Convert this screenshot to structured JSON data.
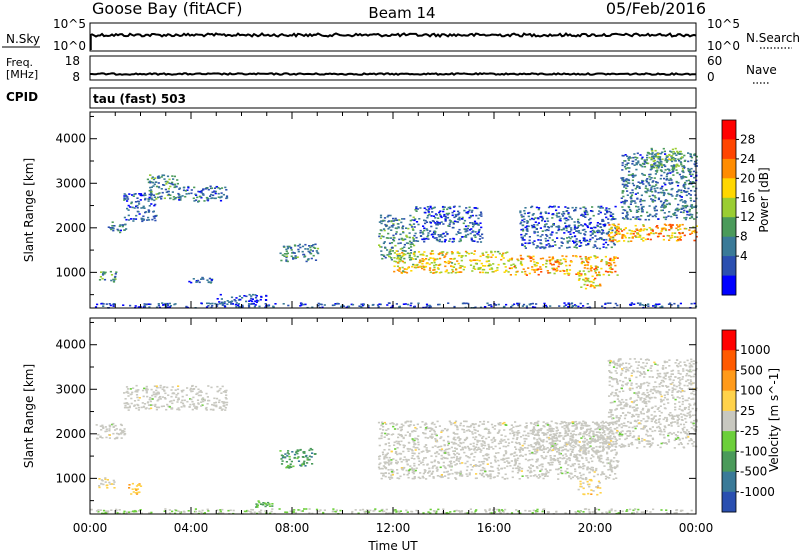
{
  "header": {
    "station": "Goose Bay (fitACF)",
    "beam": "Beam 14",
    "date": "05/Feb/2016"
  },
  "strip_nsky": {
    "left_label": "N.Sky",
    "left_ticks": [
      "10^5",
      "10^0"
    ],
    "right_label": "N.Search",
    "right_ticks": [
      "10^5",
      "10^0"
    ]
  },
  "strip_freq": {
    "left_label_1": "Freq.",
    "left_label_2": "[MHz]",
    "left_ticks": [
      "18",
      "8"
    ],
    "right_label": "Nave",
    "right_ticks": [
      "60",
      "0"
    ]
  },
  "cpid": {
    "label": "CPID",
    "value": "tau (fast) 503"
  },
  "chart_data": [
    {
      "type": "heatmap",
      "name": "power",
      "ylabel": "Slant Range [km]",
      "ylim": [
        200,
        4600
      ],
      "yticks": [
        "1000",
        "2000",
        "3000",
        "4000"
      ],
      "xlim": [
        "00:00",
        "24:00"
      ],
      "colorbar": {
        "label": "Power [dB]",
        "ticks": [
          "28",
          "24",
          "20",
          "16",
          "12",
          "8",
          "4"
        ],
        "colors": [
          "#0000ff",
          "#2b4fb0",
          "#3a7a98",
          "#4a9a5a",
          "#9acd32",
          "#ffd700",
          "#ff8c00",
          "#ff4500",
          "#ff0000"
        ],
        "range": [
          0,
          30
        ]
      },
      "regions": [
        {
          "t": [
            0.7,
            1.4
          ],
          "r": [
            1900,
            2150
          ],
          "v": 8
        },
        {
          "t": [
            1.3,
            2.6
          ],
          "r": [
            2150,
            2800
          ],
          "v": 6
        },
        {
          "t": [
            2.2,
            3.5
          ],
          "r": [
            2650,
            3200
          ],
          "v": 10
        },
        {
          "t": [
            3.3,
            5.4
          ],
          "r": [
            2600,
            2950
          ],
          "v": 7
        },
        {
          "t": [
            0.3,
            1.0
          ],
          "r": [
            800,
            1050
          ],
          "v": 10
        },
        {
          "t": [
            3.8,
            4.8
          ],
          "r": [
            780,
            900
          ],
          "v": 7
        },
        {
          "t": [
            5.0,
            7.0
          ],
          "r": [
            300,
            520
          ],
          "v": 5
        },
        {
          "t": [
            7.5,
            9.0
          ],
          "r": [
            1250,
            1650
          ],
          "v": 9
        },
        {
          "t": [
            11.4,
            12.8
          ],
          "r": [
            1300,
            2300
          ],
          "v": 10
        },
        {
          "t": [
            12.0,
            16.5
          ],
          "r": [
            1000,
            1500
          ],
          "v": 18
        },
        {
          "t": [
            16.5,
            20.9
          ],
          "r": [
            950,
            1400
          ],
          "v": 20
        },
        {
          "t": [
            12.8,
            15.5
          ],
          "r": [
            1700,
            2500
          ],
          "v": 6
        },
        {
          "t": [
            17.0,
            20.8
          ],
          "r": [
            1550,
            2500
          ],
          "v": 6
        },
        {
          "t": [
            19.3,
            20.2
          ],
          "r": [
            650,
            1000
          ],
          "v": 19
        },
        {
          "t": [
            20.5,
            24.0
          ],
          "r": [
            1700,
            2100
          ],
          "v": 20
        },
        {
          "t": [
            21.0,
            24.0
          ],
          "r": [
            2200,
            3700
          ],
          "v": 8
        },
        {
          "t": [
            22.0,
            23.5
          ],
          "r": [
            3300,
            3800
          ],
          "v": 12
        },
        {
          "t": [
            0.0,
            24.0
          ],
          "r": [
            220,
            330
          ],
          "v": 5
        }
      ]
    },
    {
      "type": "heatmap",
      "name": "velocity",
      "ylabel": "Slant Range [km]",
      "ylim": [
        200,
        4600
      ],
      "yticks": [
        "1000",
        "2000",
        "3000",
        "4000"
      ],
      "xlim": [
        "00:00",
        "24:00"
      ],
      "xticks": [
        "00:00",
        "04:00",
        "08:00",
        "12:00",
        "16:00",
        "20:00",
        "00:00"
      ],
      "xlabel": "Time UT",
      "colorbar": {
        "label": "Velocity [m s^-1]",
        "ticks": [
          "1000",
          "500",
          "100",
          "25",
          "-25",
          "-100",
          "-500",
          "-1000"
        ],
        "colors": [
          "#2a4fb0",
          "#3a7a98",
          "#4a9a5a",
          "#6ccf3a",
          "#c8c8c0",
          "#ffd24a",
          "#ff9a1a",
          "#ff5a00",
          "#ff0000"
        ],
        "range": [
          -1000,
          1000
        ]
      },
      "regions": [
        {
          "t": [
            0.2,
            1.4
          ],
          "r": [
            1900,
            2250
          ],
          "v": 0
        },
        {
          "t": [
            1.3,
            5.4
          ],
          "r": [
            2550,
            3100
          ],
          "v": 0
        },
        {
          "t": [
            0.3,
            1.0
          ],
          "r": [
            800,
            1050
          ],
          "v": 120
        },
        {
          "t": [
            1.5,
            2.0
          ],
          "r": [
            650,
            900
          ],
          "v": 300
        },
        {
          "t": [
            6.5,
            7.2
          ],
          "r": [
            350,
            520
          ],
          "v": -400
        },
        {
          "t": [
            7.5,
            8.9
          ],
          "r": [
            1250,
            1700
          ],
          "v": -450
        },
        {
          "t": [
            11.4,
            20.9
          ],
          "r": [
            1000,
            2300
          ],
          "v": 0
        },
        {
          "t": [
            19.3,
            20.2
          ],
          "r": [
            650,
            1000
          ],
          "v": 200
        },
        {
          "t": [
            20.5,
            24.0
          ],
          "r": [
            1700,
            3700
          ],
          "v": 0
        },
        {
          "t": [
            17.5,
            20.5
          ],
          "r": [
            1600,
            2300
          ],
          "v": 0
        },
        {
          "t": [
            0.0,
            24.0
          ],
          "r": [
            220,
            330
          ],
          "v": -60
        }
      ]
    }
  ]
}
